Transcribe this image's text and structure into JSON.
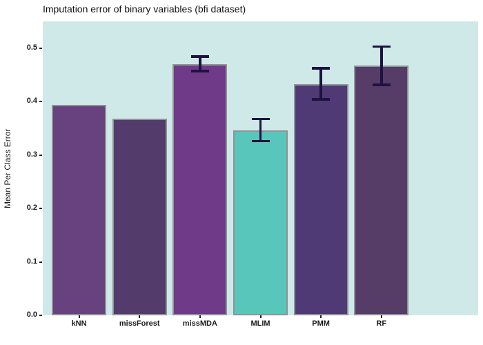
{
  "chart_data": {
    "type": "bar",
    "title": "Imputation error of binary variables (bfi dataset)",
    "xlabel": "",
    "ylabel": "Mean Per Class Error",
    "categories": [
      "kNN",
      "missForest",
      "missMDA",
      "MLIM",
      "PMM",
      "RF"
    ],
    "values": [
      0.394,
      0.368,
      0.47,
      0.346,
      0.433,
      0.467
    ],
    "error_bars": [
      null,
      null,
      {
        "low": 0.457,
        "high": 0.484
      },
      {
        "low": 0.326,
        "high": 0.367
      },
      {
        "low": 0.404,
        "high": 0.462
      },
      {
        "low": 0.431,
        "high": 0.503
      }
    ],
    "bar_colors": [
      "#68417f",
      "#533c6b",
      "#6f3b88",
      "#59c6bc",
      "#4f3a76",
      "#553d68"
    ],
    "bar_border_color": "#8f9296",
    "error_bar_color": "#1e1240",
    "panel_background": "#cfe9e9",
    "yticks": [
      0.0,
      0.1,
      0.2,
      0.3,
      0.4,
      0.5
    ],
    "ylim": [
      0,
      0.55
    ],
    "grid": false,
    "legend": "none"
  }
}
